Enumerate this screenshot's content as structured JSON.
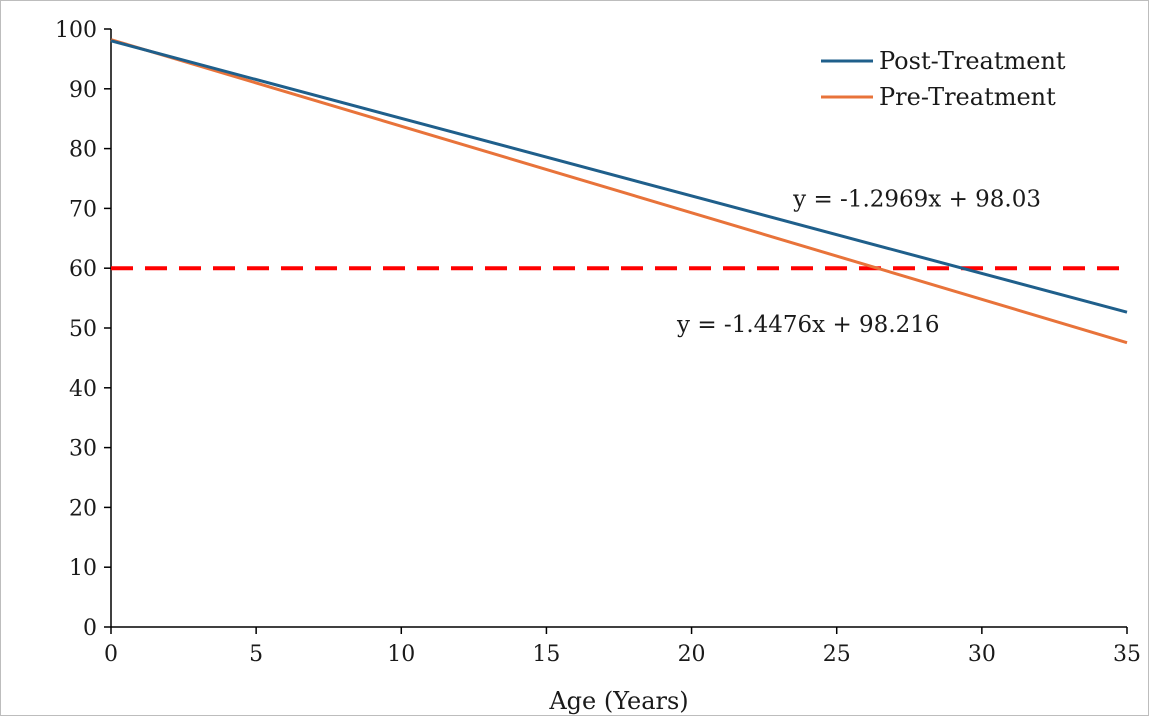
{
  "chart_data": {
    "type": "line",
    "title": "",
    "xlabel": "Age (Years)",
    "ylabel": "",
    "xlim": [
      0,
      35
    ],
    "ylim": [
      0,
      100
    ],
    "x_ticks": [
      "0",
      "5",
      "10",
      "15",
      "20",
      "25",
      "30",
      "35"
    ],
    "y_ticks": [
      "0",
      "10",
      "20",
      "30",
      "40",
      "50",
      "60",
      "70",
      "80",
      "90",
      "100"
    ],
    "grid": false,
    "legend_position": "top-right",
    "series": [
      {
        "name": "Post-Treatment",
        "color": "#1f5f8b",
        "x": [
          0,
          35
        ],
        "y": [
          98.03,
          52.64
        ]
      },
      {
        "name": "Pre-Treatment",
        "color": "#e8733a",
        "x": [
          0,
          35
        ],
        "y": [
          98.216,
          47.55
        ]
      }
    ],
    "reference_line": {
      "y": 60,
      "color": "#ff0000",
      "style": "dashed"
    },
    "annotations": [
      {
        "text": "y = -1.2969x + 98.03",
        "x": 23.5,
        "y": 70.3
      },
      {
        "text": "y = -1.4476x + 98.216",
        "x": 19.5,
        "y": 49.3
      }
    ]
  }
}
